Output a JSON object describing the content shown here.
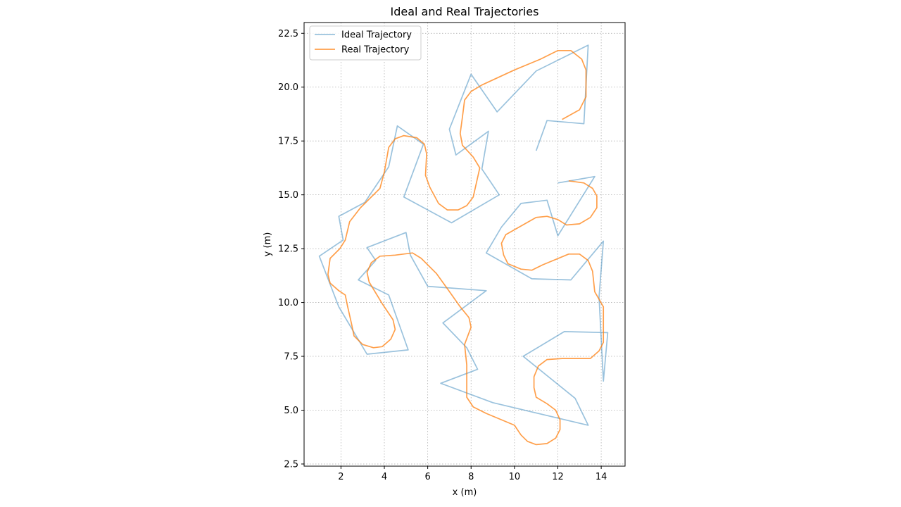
{
  "chart_data": {
    "type": "line",
    "title": "Ideal and Real Trajectories",
    "xlabel": "x (m)",
    "ylabel": "y (m)",
    "xlim": [
      0.3,
      15.1
    ],
    "ylim": [
      2.4,
      23.0
    ],
    "xticks": [
      2,
      4,
      6,
      8,
      10,
      12,
      14
    ],
    "yticks": [
      2.5,
      5.0,
      7.5,
      10.0,
      12.5,
      15.0,
      17.5,
      20.0,
      22.5
    ],
    "xtick_labels": [
      "2",
      "4",
      "6",
      "8",
      "10",
      "12",
      "14"
    ],
    "ytick_labels": [
      "2.5",
      "5.0",
      "7.5",
      "10.0",
      "12.5",
      "15.0",
      "17.5",
      "20.0",
      "22.5"
    ],
    "grid": true,
    "legend": "top-left",
    "series": [
      {
        "name": "Ideal Trajectory",
        "color": "#1f77b4",
        "points": [
          [
            11.0,
            17.05
          ],
          [
            11.5,
            18.45
          ],
          [
            13.2,
            18.3
          ],
          [
            13.4,
            21.95
          ],
          [
            11.0,
            20.75
          ],
          [
            9.2,
            18.85
          ],
          [
            8.0,
            20.6
          ],
          [
            7.0,
            18.05
          ],
          [
            7.3,
            16.85
          ],
          [
            8.8,
            17.95
          ],
          [
            8.5,
            16.2
          ],
          [
            9.3,
            15.0
          ],
          [
            7.1,
            13.7
          ],
          [
            4.9,
            14.9
          ],
          [
            5.8,
            17.35
          ],
          [
            4.6,
            18.2
          ],
          [
            4.2,
            16.3
          ],
          [
            3.1,
            14.65
          ],
          [
            1.9,
            14.0
          ],
          [
            2.1,
            12.9
          ],
          [
            1.0,
            12.15
          ],
          [
            1.9,
            9.8
          ],
          [
            3.2,
            7.6
          ],
          [
            5.1,
            7.8
          ],
          [
            4.2,
            10.35
          ],
          [
            2.8,
            11.05
          ],
          [
            3.6,
            11.95
          ],
          [
            3.2,
            12.55
          ],
          [
            5.0,
            13.25
          ],
          [
            5.2,
            12.2
          ],
          [
            6.0,
            10.75
          ],
          [
            8.7,
            10.55
          ],
          [
            6.7,
            9.05
          ],
          [
            7.8,
            7.9
          ],
          [
            8.3,
            6.9
          ],
          [
            6.6,
            6.25
          ],
          [
            9.0,
            5.35
          ],
          [
            13.4,
            4.3
          ],
          [
            12.8,
            5.55
          ],
          [
            10.4,
            7.5
          ],
          [
            12.3,
            8.65
          ],
          [
            14.3,
            8.6
          ],
          [
            14.1,
            6.35
          ],
          [
            13.9,
            10.25
          ],
          [
            14.1,
            12.85
          ],
          [
            12.6,
            11.05
          ],
          [
            10.8,
            11.1
          ],
          [
            8.7,
            12.3
          ],
          [
            9.4,
            13.5
          ],
          [
            10.3,
            14.6
          ],
          [
            11.5,
            14.75
          ],
          [
            12.0,
            13.1
          ],
          [
            13.7,
            15.85
          ],
          [
            12.0,
            15.55
          ]
        ]
      },
      {
        "name": "Real Trajectory",
        "color": "#ff7f0e",
        "points": [
          [
            12.2,
            18.5
          ],
          [
            13.0,
            18.95
          ],
          [
            13.3,
            19.55
          ],
          [
            13.3,
            20.8
          ],
          [
            13.1,
            21.3
          ],
          [
            12.6,
            21.7
          ],
          [
            12.0,
            21.7
          ],
          [
            11.2,
            21.3
          ],
          [
            10.0,
            20.8
          ],
          [
            8.5,
            20.1
          ],
          [
            8.0,
            19.8
          ],
          [
            7.7,
            19.4
          ],
          [
            7.6,
            18.6
          ],
          [
            7.5,
            17.85
          ],
          [
            7.6,
            17.3
          ],
          [
            8.1,
            16.75
          ],
          [
            8.4,
            16.25
          ],
          [
            8.1,
            14.9
          ],
          [
            7.8,
            14.5
          ],
          [
            7.4,
            14.3
          ],
          [
            6.9,
            14.3
          ],
          [
            6.5,
            14.6
          ],
          [
            6.1,
            15.35
          ],
          [
            5.9,
            15.9
          ],
          [
            5.95,
            16.9
          ],
          [
            5.85,
            17.35
          ],
          [
            5.5,
            17.65
          ],
          [
            4.9,
            17.75
          ],
          [
            4.5,
            17.6
          ],
          [
            4.2,
            17.2
          ],
          [
            4.0,
            16.05
          ],
          [
            3.8,
            15.3
          ],
          [
            2.9,
            14.4
          ],
          [
            2.4,
            13.75
          ],
          [
            2.2,
            12.9
          ],
          [
            1.95,
            12.5
          ],
          [
            1.5,
            12.05
          ],
          [
            1.4,
            11.3
          ],
          [
            1.5,
            10.9
          ],
          [
            1.9,
            10.55
          ],
          [
            2.2,
            10.35
          ],
          [
            2.3,
            9.85
          ],
          [
            2.5,
            8.95
          ],
          [
            2.6,
            8.45
          ],
          [
            3.0,
            8.05
          ],
          [
            3.5,
            7.9
          ],
          [
            3.9,
            7.95
          ],
          [
            4.3,
            8.3
          ],
          [
            4.5,
            8.75
          ],
          [
            4.4,
            9.2
          ],
          [
            3.9,
            9.95
          ],
          [
            3.3,
            10.95
          ],
          [
            3.2,
            11.4
          ],
          [
            3.4,
            11.85
          ],
          [
            3.8,
            12.15
          ],
          [
            4.5,
            12.2
          ],
          [
            5.3,
            12.3
          ],
          [
            5.7,
            12.05
          ],
          [
            6.4,
            11.35
          ],
          [
            6.9,
            10.65
          ],
          [
            7.5,
            9.8
          ],
          [
            7.9,
            9.3
          ],
          [
            8.0,
            8.85
          ],
          [
            7.7,
            8.05
          ],
          [
            7.8,
            7.1
          ],
          [
            7.8,
            5.6
          ],
          [
            8.1,
            5.15
          ],
          [
            8.7,
            4.85
          ],
          [
            10.0,
            4.3
          ],
          [
            10.3,
            3.85
          ],
          [
            10.6,
            3.55
          ],
          [
            11.0,
            3.4
          ],
          [
            11.5,
            3.45
          ],
          [
            11.9,
            3.7
          ],
          [
            12.1,
            4.1
          ],
          [
            12.1,
            4.55
          ],
          [
            11.9,
            5.0
          ],
          [
            11.5,
            5.3
          ],
          [
            11.0,
            5.6
          ],
          [
            10.9,
            6.05
          ],
          [
            10.9,
            6.55
          ],
          [
            11.1,
            7.05
          ],
          [
            11.5,
            7.35
          ],
          [
            12.2,
            7.4
          ],
          [
            13.5,
            7.4
          ],
          [
            13.9,
            7.75
          ],
          [
            14.1,
            8.15
          ],
          [
            14.1,
            9.8
          ],
          [
            13.7,
            10.5
          ],
          [
            13.6,
            11.45
          ],
          [
            13.4,
            11.95
          ],
          [
            13.0,
            12.25
          ],
          [
            12.5,
            12.25
          ],
          [
            11.3,
            11.75
          ],
          [
            10.8,
            11.5
          ],
          [
            10.3,
            11.55
          ],
          [
            9.7,
            11.8
          ],
          [
            9.5,
            12.2
          ],
          [
            9.4,
            12.75
          ],
          [
            9.6,
            13.15
          ],
          [
            10.3,
            13.55
          ],
          [
            11.0,
            13.95
          ],
          [
            11.5,
            14.0
          ],
          [
            12.0,
            13.85
          ],
          [
            12.4,
            13.6
          ],
          [
            13.0,
            13.65
          ],
          [
            13.5,
            13.95
          ],
          [
            13.8,
            14.4
          ],
          [
            13.8,
            14.95
          ],
          [
            13.6,
            15.3
          ],
          [
            13.2,
            15.55
          ],
          [
            12.5,
            15.65
          ]
        ]
      }
    ]
  }
}
